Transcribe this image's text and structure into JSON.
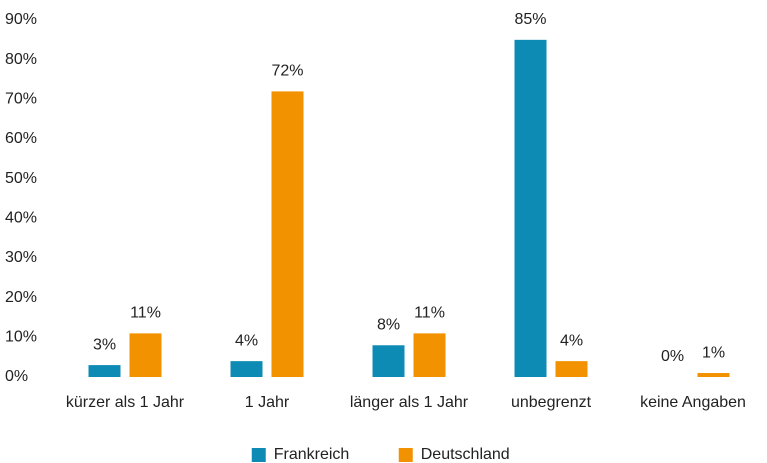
{
  "chart_data": {
    "type": "bar",
    "categories": [
      "kürzer als 1 Jahr",
      "1 Jahr",
      "länger als 1 Jahr",
      "unbegrenzt",
      "keine Angaben"
    ],
    "series": [
      {
        "name": "Frankreich",
        "color": "#0e8bb5",
        "values": [
          3,
          4,
          8,
          85,
          0
        ],
        "value_labels": [
          "3%",
          "4%",
          "8%",
          "85%",
          "0%"
        ]
      },
      {
        "name": "Deutschland",
        "color": "#f39200",
        "values": [
          11,
          72,
          11,
          4,
          1
        ],
        "value_labels": [
          "11%",
          "72%",
          "11%",
          "4%",
          "1%"
        ]
      }
    ],
    "ylim": [
      0,
      90
    ],
    "yticks": [
      {
        "value": 0,
        "label": "0%"
      },
      {
        "value": 10,
        "label": "10%"
      },
      {
        "value": 20,
        "label": "20%"
      },
      {
        "value": 30,
        "label": "30%"
      },
      {
        "value": 40,
        "label": "40%"
      },
      {
        "value": 50,
        "label": "50%"
      },
      {
        "value": 60,
        "label": "60%"
      },
      {
        "value": 70,
        "label": "70%"
      },
      {
        "value": 80,
        "label": "80%"
      },
      {
        "value": 90,
        "label": "90%"
      }
    ],
    "grid": false,
    "legend": "bottom"
  }
}
